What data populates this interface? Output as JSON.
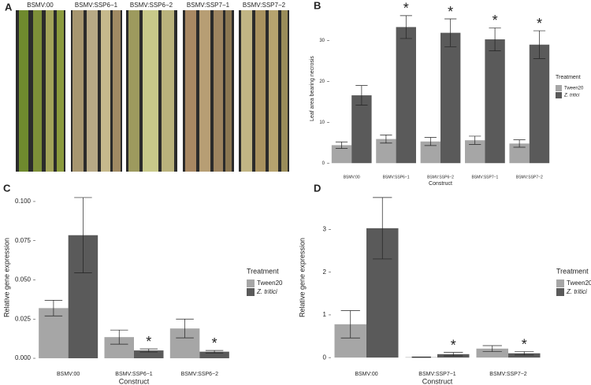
{
  "photo_panel": {
    "label": "A",
    "captions": [
      "BSMV:00",
      "BSMV:SSP6−1",
      "BSMV:SSP6−2",
      "BSMV:SSP7−1",
      "BSMV:SSP7−2"
    ]
  },
  "chart_data": [
    {
      "type": "bar",
      "panel": "B",
      "x_label": "Construct",
      "y_label": "Leaf area bearing necrosis",
      "categories": [
        "BSMV:00",
        "BSMV:SSP6−1",
        "BSMV:SSP6−2",
        "BSMV:SSP7−1",
        "BSMV:SSP7−2"
      ],
      "series": [
        {
          "name": "Tween20",
          "color": "#a6a6a6",
          "italic": false,
          "values": [
            4.4,
            5.9,
            5.3,
            5.6,
            4.8
          ],
          "errors": [
            0.8,
            1.0,
            1.0,
            1.0,
            0.9
          ],
          "marked": [
            false,
            false,
            false,
            false,
            false
          ]
        },
        {
          "name": "Z. tritici",
          "color": "#5a5a5a",
          "italic": true,
          "values": [
            16.6,
            33.3,
            31.9,
            30.3,
            29.0
          ],
          "errors": [
            2.4,
            2.8,
            3.4,
            2.8,
            3.4
          ],
          "marked": [
            false,
            true,
            true,
            true,
            true
          ]
        }
      ],
      "marker_text": "*",
      "legend_title": "Treatment",
      "ylim": [
        -1.5,
        38
      ],
      "yticks": [
        0,
        10,
        20,
        30
      ],
      "grid": false
    },
    {
      "type": "bar",
      "panel": "C",
      "x_label": "Construct",
      "y_label": "Relative gene expression",
      "categories": [
        "BSMV:00",
        "BSMV:SSP6−1",
        "BSMV:SSP6−2"
      ],
      "series": [
        {
          "name": "Tween20",
          "color": "#a6a6a6",
          "italic": false,
          "values": [
            0.032,
            0.0135,
            0.019
          ],
          "errors": [
            0.005,
            0.0045,
            0.006
          ],
          "marked": [
            false,
            false,
            false
          ]
        },
        {
          "name": "Z. tritici",
          "color": "#5a5a5a",
          "italic": true,
          "values": [
            0.0785,
            0.005,
            0.0042
          ],
          "errors": [
            0.024,
            0.001,
            0.0008
          ],
          "marked": [
            false,
            true,
            true
          ]
        }
      ],
      "marker_text": "*",
      "legend_title": "Treatment",
      "ylim": [
        -0.005,
        0.108
      ],
      "yticks": [
        {
          "value": 0,
          "label": "0.000"
        },
        {
          "value": 0.025,
          "label": "0.025"
        },
        {
          "value": 0.05,
          "label": "0.050"
        },
        {
          "value": 0.075,
          "label": "0.075"
        },
        {
          "value": 0.1,
          "label": "0.100"
        }
      ],
      "grid": false
    },
    {
      "type": "bar",
      "panel": "D",
      "x_label": "Construct",
      "y_label": "Relative gene expression",
      "categories": [
        "BSMV:00",
        "BSMV:SSP7−1",
        "BSMV:SSP7−2"
      ],
      "series": [
        {
          "name": "Tween20",
          "color": "#a6a6a6",
          "italic": false,
          "values": [
            0.78,
            0.01,
            0.21
          ],
          "errors": [
            0.32,
            0.005,
            0.07
          ],
          "marked": [
            false,
            false,
            false
          ]
        },
        {
          "name": "Z. tritici",
          "color": "#5a5a5a",
          "italic": true,
          "values": [
            3.03,
            0.08,
            0.1
          ],
          "errors": [
            0.72,
            0.04,
            0.04
          ],
          "marked": [
            false,
            true,
            true
          ]
        }
      ],
      "marker_text": "*",
      "legend_title": "Treatment",
      "ylim": [
        -0.2,
        3.95
      ],
      "yticks": [
        0,
        1,
        2,
        3
      ],
      "grid": false
    }
  ]
}
